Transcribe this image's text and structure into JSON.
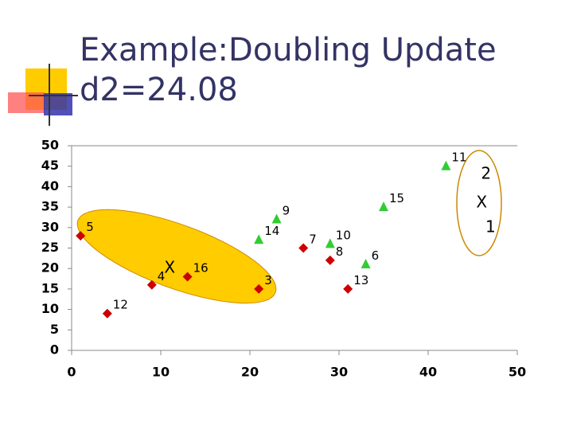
{
  "chart_data": {
    "type": "scatter",
    "title_lines": [
      "Example:Doubling Update",
      "d2=24.08"
    ],
    "xlim": [
      0,
      50
    ],
    "ylim": [
      0,
      50
    ],
    "xticks": [
      0,
      10,
      20,
      30,
      40,
      50
    ],
    "yticks": [
      0,
      5,
      10,
      15,
      20,
      25,
      30,
      35,
      40,
      45,
      50
    ],
    "grid": false,
    "series": [
      {
        "color": "#cc0000",
        "marker": "diamond",
        "labels": [
          "5",
          "12",
          "4",
          "16",
          "3",
          "7",
          "8",
          "13"
        ],
        "x": [
          1,
          4,
          9,
          13,
          21,
          26,
          29,
          31
        ],
        "y": [
          28,
          9,
          16,
          18,
          15,
          25,
          22,
          15
        ]
      },
      {
        "color": "#33cc33",
        "marker": "triangle",
        "labels": [
          "14",
          "9",
          "10",
          "6",
          "15",
          "11"
        ],
        "x": [
          21,
          23,
          29,
          33,
          35,
          42
        ],
        "y": [
          27,
          32,
          26,
          21,
          35,
          45
        ]
      }
    ],
    "annotations": [
      {
        "text": "X",
        "x": 11,
        "y": 20
      },
      {
        "text": "X",
        "x": 46,
        "y": 36
      },
      {
        "text": "2",
        "x": 46.5,
        "y": 43
      },
      {
        "text": "1",
        "x": 47,
        "y": 30
      }
    ]
  }
}
